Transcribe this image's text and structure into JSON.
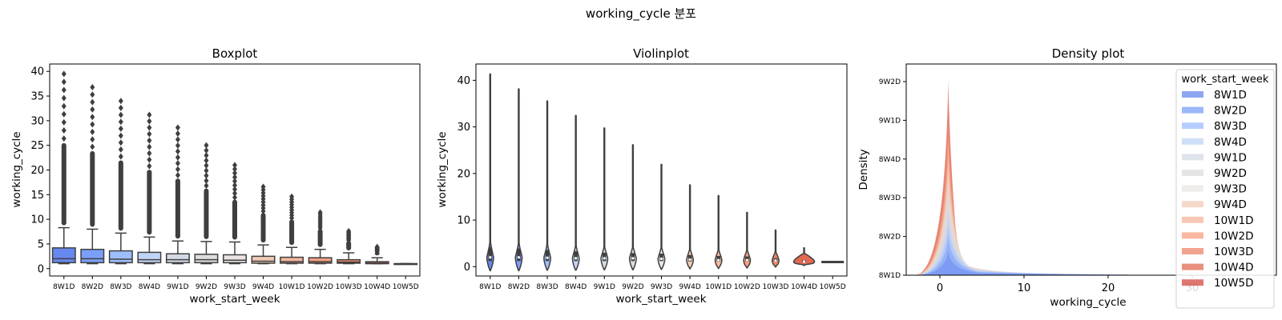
{
  "suptitle": "working_cycle 분포",
  "chart_data": [
    {
      "type": "box",
      "title": "Boxplot",
      "xlabel": "work_start_week",
      "ylabel": "working_cycle",
      "categories": [
        "8W1D",
        "8W2D",
        "8W3D",
        "8W4D",
        "9W1D",
        "9W2D",
        "9W3D",
        "9W4D",
        "10W1D",
        "10W2D",
        "10W3D",
        "10W4D",
        "10W5D"
      ],
      "ylim": [
        -1.5,
        41.5
      ],
      "yticks": [
        0,
        5,
        10,
        15,
        20,
        25,
        30,
        35,
        40
      ],
      "boxes": [
        {
          "q1": 1.2,
          "median": 2.0,
          "q3": 4.2,
          "whisker_low": 1.0,
          "whisker_high": 8.3,
          "flier_max": 39.5
        },
        {
          "q1": 1.2,
          "median": 2.0,
          "q3": 3.9,
          "whisker_low": 1.0,
          "whisker_high": 8.0,
          "flier_max": 36.8
        },
        {
          "q1": 1.2,
          "median": 1.9,
          "q3": 3.6,
          "whisker_low": 1.0,
          "whisker_high": 7.2,
          "flier_max": 34.0
        },
        {
          "q1": 1.2,
          "median": 1.8,
          "q3": 3.3,
          "whisker_low": 1.0,
          "whisker_high": 6.4,
          "flier_max": 31.2
        },
        {
          "q1": 1.2,
          "median": 1.8,
          "q3": 3.0,
          "whisker_low": 1.0,
          "whisker_high": 5.6,
          "flier_max": 28.6
        },
        {
          "q1": 1.2,
          "median": 1.8,
          "q3": 2.9,
          "whisker_low": 1.0,
          "whisker_high": 5.5,
          "flier_max": 25.0
        },
        {
          "q1": 1.2,
          "median": 1.7,
          "q3": 2.8,
          "whisker_low": 1.0,
          "whisker_high": 5.4,
          "flier_max": 21.0
        },
        {
          "q1": 1.1,
          "median": 1.5,
          "q3": 2.5,
          "whisker_low": 1.0,
          "whisker_high": 4.8,
          "flier_max": 16.6
        },
        {
          "q1": 1.1,
          "median": 1.4,
          "q3": 2.3,
          "whisker_low": 1.0,
          "whisker_high": 4.3,
          "flier_max": 14.6
        },
        {
          "q1": 1.1,
          "median": 1.4,
          "q3": 2.2,
          "whisker_low": 1.0,
          "whisker_high": 3.9,
          "flier_max": 11.4
        },
        {
          "q1": 1.1,
          "median": 1.3,
          "q3": 1.8,
          "whisker_low": 1.0,
          "whisker_high": 3.2,
          "flier_max": 7.6
        },
        {
          "q1": 1.0,
          "median": 1.1,
          "q3": 1.4,
          "whisker_low": 1.0,
          "whisker_high": 2.2,
          "flier_max": 4.4
        },
        {
          "q1": 1.0,
          "median": 1.0,
          "q3": 1.0,
          "whisker_low": 1.0,
          "whisker_high": 1.0,
          "flier_max": 1.0
        }
      ]
    },
    {
      "type": "violin",
      "title": "Violinplot",
      "xlabel": "work_start_week",
      "ylabel": "working_cycle",
      "categories": [
        "8W1D",
        "8W2D",
        "8W3D",
        "8W4D",
        "9W1D",
        "9W2D",
        "9W3D",
        "9W4D",
        "10W1D",
        "10W2D",
        "10W3D",
        "10W4D",
        "10W5D"
      ],
      "ylim": [
        -2.0,
        43.5
      ],
      "yticks": [
        0,
        10,
        20,
        30,
        40
      ],
      "violins": [
        {
          "min": -0.8,
          "max": 41.3,
          "q1": 1.2,
          "median": 2.0,
          "q3": 4.2
        },
        {
          "min": -0.8,
          "max": 38.1,
          "q1": 1.2,
          "median": 2.0,
          "q3": 3.9
        },
        {
          "min": -0.7,
          "max": 35.5,
          "q1": 1.2,
          "median": 1.9,
          "q3": 3.6
        },
        {
          "min": -0.7,
          "max": 32.4,
          "q1": 1.2,
          "median": 1.8,
          "q3": 3.3
        },
        {
          "min": -0.6,
          "max": 29.7,
          "q1": 1.2,
          "median": 1.8,
          "q3": 3.0
        },
        {
          "min": -0.6,
          "max": 26.1,
          "q1": 1.2,
          "median": 1.8,
          "q3": 2.9
        },
        {
          "min": -0.5,
          "max": 21.9,
          "q1": 1.2,
          "median": 1.7,
          "q3": 2.8
        },
        {
          "min": -0.4,
          "max": 17.5,
          "q1": 1.1,
          "median": 1.5,
          "q3": 2.5
        },
        {
          "min": -0.3,
          "max": 15.2,
          "q1": 1.1,
          "median": 1.4,
          "q3": 2.3
        },
        {
          "min": -0.2,
          "max": 11.6,
          "q1": 1.1,
          "median": 1.4,
          "q3": 2.2
        },
        {
          "min": 0.0,
          "max": 7.8,
          "q1": 1.1,
          "median": 1.3,
          "q3": 1.8
        },
        {
          "min": 0.3,
          "max": 4.0,
          "q1": 1.0,
          "median": 1.1,
          "q3": 1.4
        },
        {
          "min": 0.9,
          "max": 1.1,
          "q1": 1.0,
          "median": 1.0,
          "q3": 1.0
        }
      ]
    },
    {
      "type": "area",
      "title": "Density plot",
      "xlabel": "working_cycle",
      "ylabel": "Density",
      "xlim": [
        -4,
        40
      ],
      "xticks": [
        0,
        10,
        20,
        30
      ],
      "ytick_labels": [
        "8W1D",
        "8W2D",
        "8W3D",
        "8W4D",
        "9W1D",
        "9W2D"
      ],
      "legend_title": "work_start_week",
      "legend_position": "top-right",
      "peak_x": 1.0,
      "series_names": [
        "8W1D",
        "8W2D",
        "8W3D",
        "8W4D",
        "9W1D",
        "9W2D",
        "9W3D",
        "9W4D",
        "10W1D",
        "10W2D",
        "10W3D",
        "10W4D",
        "10W5D"
      ]
    }
  ],
  "palette": [
    "#6788ee",
    "#7b9ff9",
    "#9ebeff",
    "#c0d4f5",
    "#d4dbe6",
    "#dddcdc",
    "#ebe6e3",
    "#f2cbb7",
    "#f4b69c",
    "#f5a081",
    "#ee8468",
    "#e26952",
    "#d24b40"
  ]
}
